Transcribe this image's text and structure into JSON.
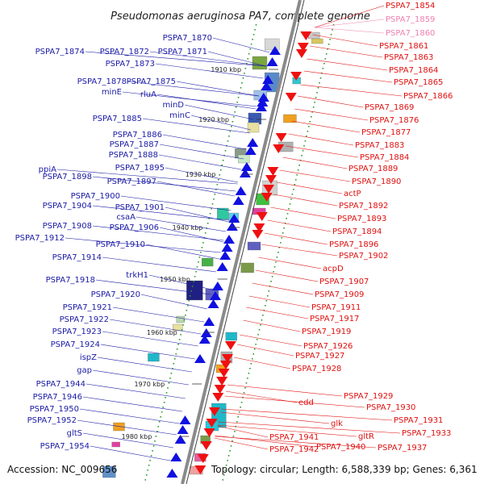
{
  "title": "Pseudomonas aeruginosa PA7, complete genome",
  "footer": {
    "accession": "Accession: NC_009656",
    "summary": "Topology: circular; Length: 6,588,339 bp; Genes: 6,361"
  },
  "colors": {
    "left_label": "#1a1aa6",
    "right_label": "#e01010",
    "faded_label": "#f080b0",
    "backbone": "#8a8a8a",
    "tick": "#2e9a2e"
  },
  "kbp_ticks": [
    "1910 kbp",
    "1920 kbp",
    "1930 kbp",
    "1940 kbp",
    "1950 kbp",
    "1960 kbp",
    "1970 kbp",
    "1980 kbp"
  ],
  "left_labels": [
    "PSPA7_1870",
    "PSPA7_1874",
    "PSPA7_1872",
    "PSPA7_1871",
    "PSPA7_1873",
    "PSPA7_1878",
    "PSPA7_1875",
    "minE",
    "rluA",
    "minD",
    "minC",
    "PSPA7_1885",
    "PSPA7_1886",
    "PSPA7_1887",
    "PSPA7_1888",
    "PSPA7_1895",
    "ppiA",
    "PSPA7_1898",
    "PSPA7_1897",
    "PSPA7_1900",
    "PSPA7_1904",
    "PSPA7_1901",
    "csaA",
    "PSPA7_1906",
    "PSPA7_1908",
    "PSPA7_1912",
    "PSPA7_1910",
    "PSPA7_1914",
    "trkH1",
    "PSPA7_1918",
    "PSPA7_1920",
    "PSPA7_1921",
    "PSPA7_1922",
    "PSPA7_1923",
    "PSPA7_1924",
    "ispZ",
    "gap",
    "PSPA7_1944",
    "PSPA7_1946",
    "PSPA7_1950",
    "PSPA7_1952",
    "gltS",
    "PSPA7_1954"
  ],
  "right_labels": [
    "PSPA7_1854",
    "PSPA7_1859",
    "PSPA7_1860",
    "PSPA7_1861",
    "PSPA7_1863",
    "PSPA7_1864",
    "PSPA7_1865",
    "PSPA7_1866",
    "PSPA7_1869",
    "PSPA7_1876",
    "PSPA7_1877",
    "PSPA7_1883",
    "PSPA7_1884",
    "PSPA7_1889",
    "PSPA7_1890",
    "actP",
    "PSPA7_1892",
    "PSPA7_1893",
    "PSPA7_1894",
    "PSPA7_1896",
    "PSPA7_1902",
    "acpD",
    "PSPA7_1907",
    "PSPA7_1909",
    "PSPA7_1911",
    "PSPA7_1917",
    "PSPA7_1919",
    "PSPA7_1926",
    "PSPA7_1927",
    "PSPA7_1928",
    "PSPA7_1929",
    "PSPA7_1930",
    "edd",
    "PSPA7_1931",
    "glk",
    "PSPA7_1933",
    "gltR",
    "PSPA7_1941",
    "PSPA7_1940",
    "PSPA7_1937",
    "PSPA7_1942"
  ]
}
